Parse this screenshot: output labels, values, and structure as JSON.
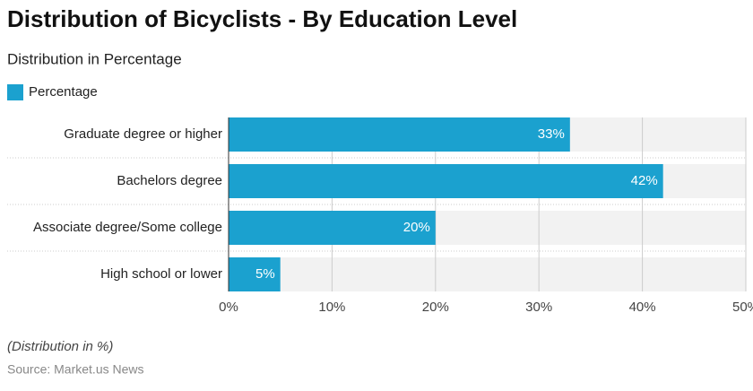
{
  "chart_data": {
    "type": "bar",
    "orientation": "horizontal",
    "title": "Distribution of Bicyclists - By Education Level",
    "subtitle": "Distribution in Percentage",
    "categories": [
      "Graduate degree or higher",
      "Bachelors degree",
      "Associate degree/Some college",
      "High school or lower"
    ],
    "series": [
      {
        "name": "Percentage",
        "color": "#1ba1cf",
        "values": [
          33,
          42,
          20,
          5
        ],
        "value_labels": [
          "33%",
          "42%",
          "20%",
          "5%"
        ]
      }
    ],
    "xlim": [
      0,
      50
    ],
    "xticks": [
      {
        "value": 0,
        "label": "0%"
      },
      {
        "value": 10,
        "label": "10%"
      },
      {
        "value": 20,
        "label": "20%"
      },
      {
        "value": 30,
        "label": "30%"
      },
      {
        "value": 40,
        "label": "40%"
      },
      {
        "value": 50,
        "label": "50%"
      }
    ],
    "grid": true,
    "legend": "top-left",
    "note": "(Distribution in %)",
    "source": "Source: Market.us News"
  }
}
